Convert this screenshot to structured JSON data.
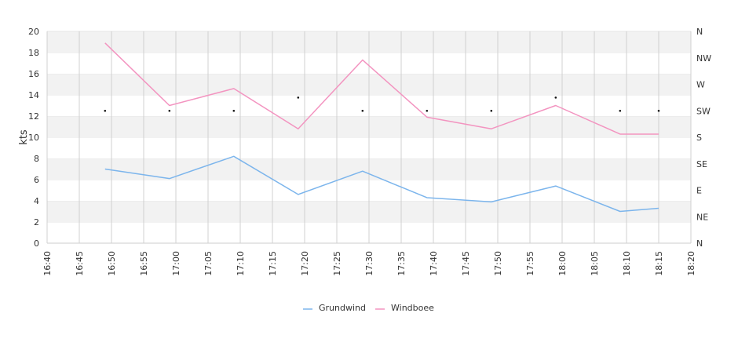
{
  "chart_data": {
    "type": "line",
    "ylabel": "kts",
    "ylim": [
      0,
      20
    ],
    "y_ticks": [
      "0",
      "2",
      "4",
      "6",
      "8",
      "10",
      "12",
      "14",
      "16",
      "18",
      "20"
    ],
    "x_range": [
      "16:40",
      "18:20"
    ],
    "x_ticks": [
      "16:40",
      "16:45",
      "16:50",
      "16:55",
      "17:00",
      "17:05",
      "17:10",
      "17:15",
      "17:20",
      "17:25",
      "17:30",
      "17:35",
      "17:40",
      "17:45",
      "17:50",
      "17:55",
      "18:00",
      "18:05",
      "18:10",
      "18:15",
      "18:20"
    ],
    "direction_ticks": [
      "N",
      "NE",
      "E",
      "SE",
      "S",
      "SW",
      "W",
      "NW",
      "N"
    ],
    "x": [
      "16:49",
      "16:59",
      "17:09",
      "17:19",
      "17:29",
      "17:39",
      "17:49",
      "17:59",
      "18:09",
      "18:15"
    ],
    "series": [
      {
        "name": "Grundwind",
        "color": "#7cb5ec",
        "values": [
          7.0,
          6.1,
          8.2,
          4.6,
          6.8,
          4.3,
          3.9,
          5.4,
          3.0,
          3.3
        ]
      },
      {
        "name": "Windboee",
        "color": "#f394c0",
        "values": [
          18.9,
          13.0,
          14.6,
          10.8,
          17.3,
          11.9,
          10.8,
          13.0,
          10.3,
          10.3
        ]
      }
    ],
    "direction_values": [
      225,
      225,
      225,
      247.5,
      225,
      225,
      225,
      247.5,
      225,
      225
    ],
    "grid": true,
    "legend": "bottom-center"
  }
}
